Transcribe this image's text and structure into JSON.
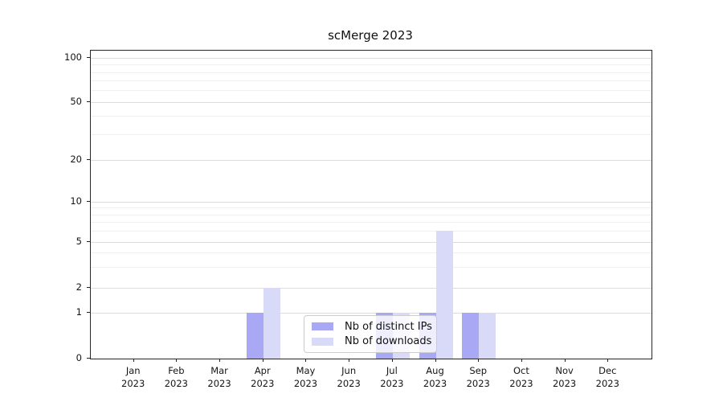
{
  "chart_data": {
    "type": "bar",
    "title": "scMerge 2023",
    "categories": [
      "Jan",
      "Feb",
      "Mar",
      "Apr",
      "May",
      "Jun",
      "Jul",
      "Aug",
      "Sep",
      "Oct",
      "Nov",
      "Dec"
    ],
    "year_label": "2023",
    "series": [
      {
        "name": "Nb of distinct IPs",
        "color": "#a8a8f5",
        "values": [
          0,
          0,
          0,
          1,
          0,
          0,
          1,
          1,
          1,
          0,
          0,
          0
        ]
      },
      {
        "name": "Nb of downloads",
        "color": "#d9d9f8",
        "values": [
          0,
          0,
          0,
          2,
          0,
          0,
          1,
          6,
          1,
          0,
          0,
          0
        ]
      }
    ],
    "yticks": [
      0,
      1,
      2,
      5,
      10,
      20,
      50,
      100
    ],
    "xlabel": "",
    "ylabel": "",
    "ylim": [
      0,
      115
    ],
    "yscale": "log-like above 1, linear 0-1",
    "grid": "horizontal major and log-minor lines",
    "legend_position": "lower center"
  }
}
